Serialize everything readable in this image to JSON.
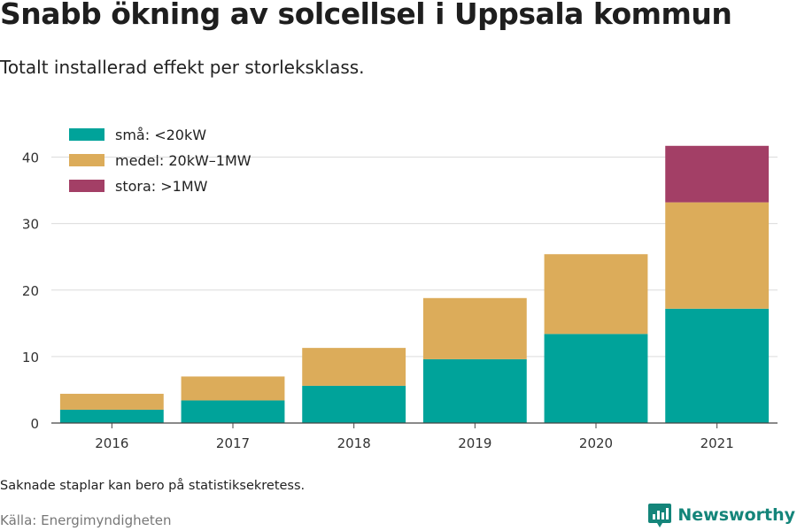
{
  "title": "Snabb ökning av solcellsel i Uppsala kommun",
  "subtitle": "Totalt installerad effekt per storleksklass.",
  "note": "Saknade staplar kan bero på statistiksekretess.",
  "source": "Källa: Energimyndigheten",
  "brand": {
    "name": "Newsworthy",
    "color": "#14857a",
    "icon": "newsworthy-logo-icon"
  },
  "chart_data": {
    "type": "bar",
    "stacked": true,
    "categories": [
      "2016",
      "2017",
      "2018",
      "2019",
      "2020",
      "2021"
    ],
    "series": [
      {
        "name": "små: <20kW",
        "color": "#00a39a",
        "values": [
          2.0,
          3.4,
          5.6,
          9.6,
          13.4,
          17.2
        ]
      },
      {
        "name": "medel: 20kW–1MW",
        "color": "#dcac5a",
        "values": [
          2.4,
          3.6,
          5.7,
          9.2,
          12.0,
          16.0
        ]
      },
      {
        "name": "stora: >1MW",
        "color": "#a33f66",
        "values": [
          0,
          0,
          0,
          0,
          0,
          8.5
        ]
      }
    ],
    "y_ticks": [
      0,
      10,
      20,
      30,
      40
    ],
    "ylim": [
      0,
      45
    ],
    "grid": true,
    "legend_position": "top-left"
  }
}
